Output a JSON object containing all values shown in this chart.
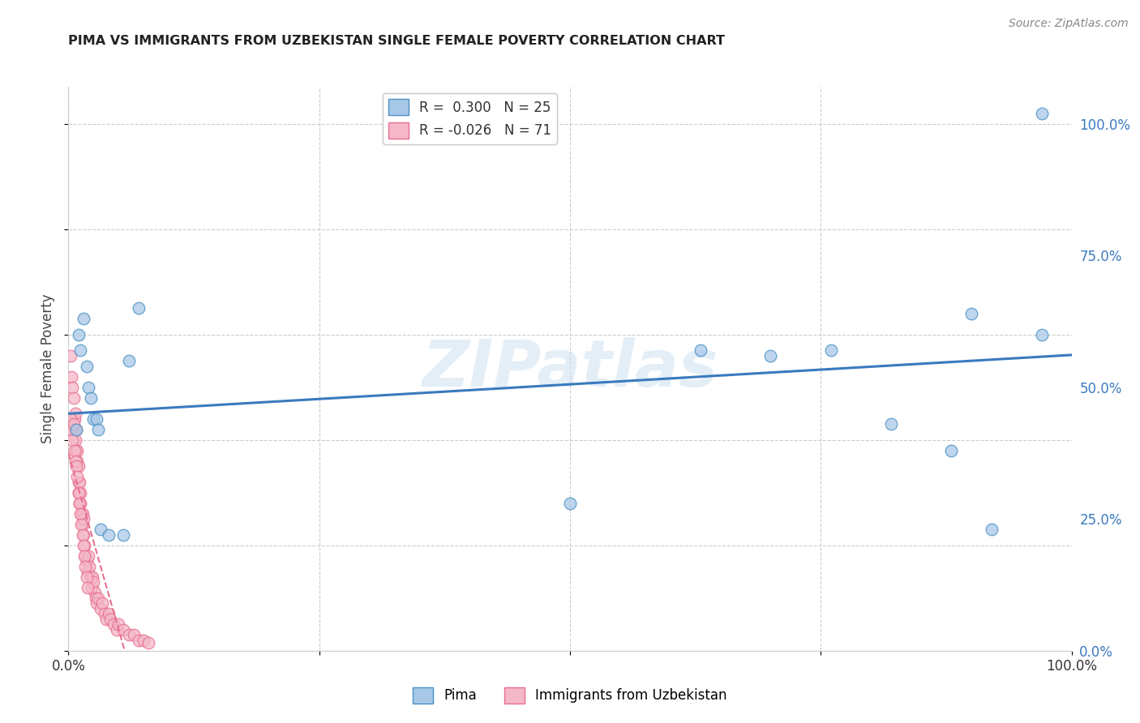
{
  "title": "PIMA VS IMMIGRANTS FROM UZBEKISTAN SINGLE FEMALE POVERTY CORRELATION CHART",
  "source": "Source: ZipAtlas.com",
  "ylabel": "Single Female Poverty",
  "legend_label1": "Pima",
  "legend_label2": "Immigrants from Uzbekistan",
  "r1": "0.300",
  "n1": "25",
  "r2": "-0.026",
  "n2": "71",
  "watermark": "ZIPatlas",
  "blue_color": "#a8c8e8",
  "pink_color": "#f4b8c8",
  "blue_edge_color": "#4a90c4",
  "pink_edge_color": "#e87090",
  "blue_line_color": "#3a7abf",
  "pink_line_color": "#e87090",
  "grid_color": "#c8c8c8",
  "pima_x": [
    0.008,
    0.01,
    0.012,
    0.015,
    0.018,
    0.02,
    0.022,
    0.025,
    0.028,
    0.03,
    0.032,
    0.04,
    0.055,
    0.06,
    0.07,
    0.5,
    0.63,
    0.7,
    0.76,
    0.82,
    0.88,
    0.9,
    0.92,
    0.97,
    0.97
  ],
  "pima_y": [
    0.42,
    0.6,
    0.57,
    0.63,
    0.54,
    0.5,
    0.48,
    0.44,
    0.44,
    0.42,
    0.23,
    0.22,
    0.22,
    0.55,
    0.65,
    0.28,
    0.57,
    0.56,
    0.57,
    0.43,
    0.38,
    0.64,
    0.23,
    0.6,
    1.02
  ],
  "uzbek_x": [
    0.002,
    0.003,
    0.004,
    0.005,
    0.006,
    0.006,
    0.007,
    0.007,
    0.008,
    0.008,
    0.009,
    0.009,
    0.01,
    0.01,
    0.01,
    0.011,
    0.011,
    0.012,
    0.012,
    0.013,
    0.014,
    0.014,
    0.015,
    0.015,
    0.016,
    0.017,
    0.018,
    0.019,
    0.02,
    0.021,
    0.022,
    0.023,
    0.024,
    0.025,
    0.026,
    0.027,
    0.028,
    0.03,
    0.032,
    0.034,
    0.036,
    0.038,
    0.04,
    0.042,
    0.045,
    0.048,
    0.05,
    0.055,
    0.06,
    0.065,
    0.07,
    0.075,
    0.08,
    0.002,
    0.003,
    0.004,
    0.005,
    0.006,
    0.007,
    0.008,
    0.009,
    0.01,
    0.011,
    0.012,
    0.013,
    0.014,
    0.015,
    0.016,
    0.017,
    0.018,
    0.019
  ],
  "uzbek_y": [
    0.56,
    0.52,
    0.5,
    0.48,
    0.44,
    0.42,
    0.4,
    0.45,
    0.38,
    0.42,
    0.36,
    0.38,
    0.32,
    0.35,
    0.3,
    0.28,
    0.32,
    0.28,
    0.3,
    0.26,
    0.24,
    0.26,
    0.22,
    0.25,
    0.2,
    0.18,
    0.17,
    0.15,
    0.18,
    0.16,
    0.14,
    0.12,
    0.14,
    0.13,
    0.11,
    0.1,
    0.09,
    0.1,
    0.08,
    0.09,
    0.07,
    0.06,
    0.07,
    0.06,
    0.05,
    0.04,
    0.05,
    0.04,
    0.03,
    0.03,
    0.02,
    0.02,
    0.015,
    0.44,
    0.42,
    0.4,
    0.43,
    0.38,
    0.36,
    0.35,
    0.33,
    0.3,
    0.28,
    0.26,
    0.24,
    0.22,
    0.2,
    0.18,
    0.16,
    0.14,
    0.12
  ],
  "xlim": [
    0.0,
    1.0
  ],
  "ylim": [
    0.0,
    1.07
  ]
}
